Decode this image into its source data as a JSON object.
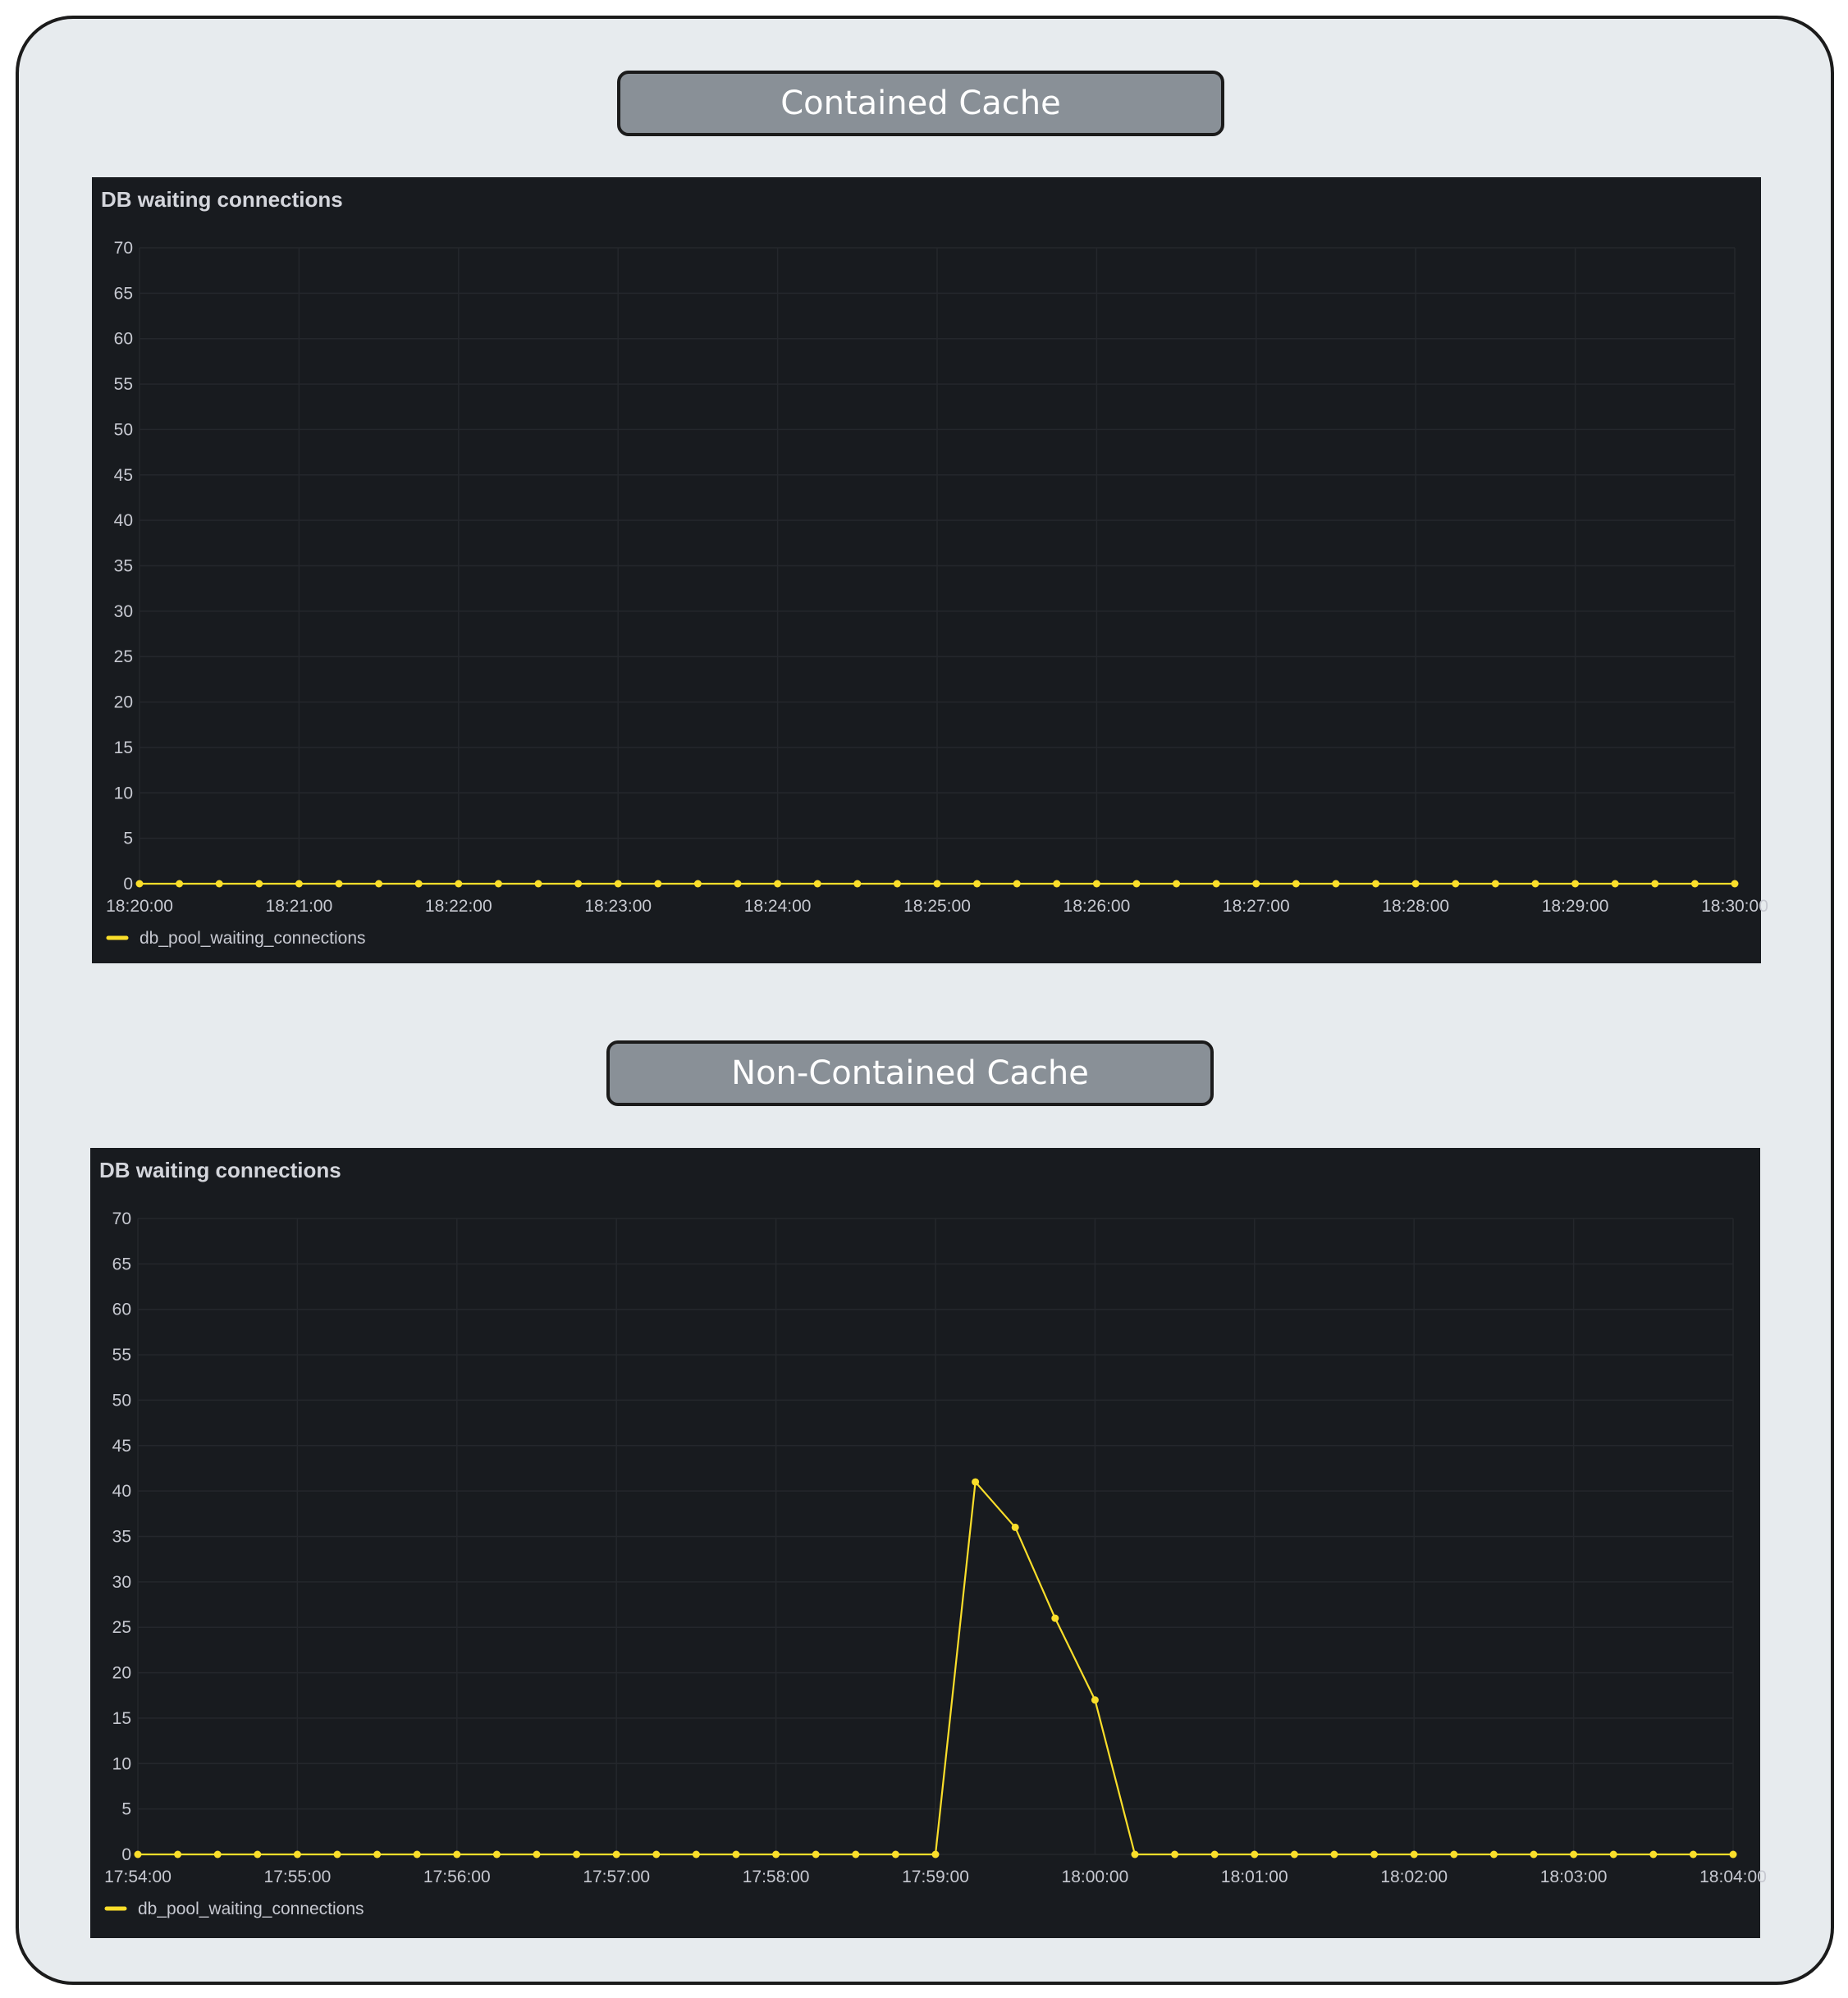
{
  "sections": [
    {
      "label": "Contained Cache"
    },
    {
      "label": "Non-Contained Cache"
    }
  ],
  "chart_data": [
    {
      "type": "line",
      "title": "DB waiting connections",
      "ylim": [
        0,
        70
      ],
      "yticks": [
        "0",
        "5",
        "10",
        "15",
        "20",
        "25",
        "30",
        "35",
        "40",
        "45",
        "50",
        "55",
        "60",
        "65",
        "70"
      ],
      "xticks": [
        "18:20:00",
        "18:21:00",
        "18:22:00",
        "18:23:00",
        "18:24:00",
        "18:25:00",
        "18:26:00",
        "18:27:00",
        "18:28:00",
        "18:29:00",
        "18:30:00"
      ],
      "x_start": "18:20:00",
      "x_end": "18:30:00",
      "x_step_seconds": 15,
      "grid": true,
      "legend_placement": "bottom-left",
      "series": [
        {
          "name": "db_pool_waiting_connections",
          "color": "#fade2a",
          "values": [
            0,
            0,
            0,
            0,
            0,
            0,
            0,
            0,
            0,
            0,
            0,
            0,
            0,
            0,
            0,
            0,
            0,
            0,
            0,
            0,
            0,
            0,
            0,
            0,
            0,
            0,
            0,
            0,
            0,
            0,
            0,
            0,
            0,
            0,
            0,
            0,
            0,
            0,
            0,
            0,
            0
          ]
        }
      ]
    },
    {
      "type": "line",
      "title": "DB waiting connections",
      "ylim": [
        0,
        70
      ],
      "yticks": [
        "0",
        "5",
        "10",
        "15",
        "20",
        "25",
        "30",
        "35",
        "40",
        "45",
        "50",
        "55",
        "60",
        "65",
        "70"
      ],
      "xticks": [
        "17:54:00",
        "17:55:00",
        "17:56:00",
        "17:57:00",
        "17:58:00",
        "17:59:00",
        "18:00:00",
        "18:01:00",
        "18:02:00",
        "18:03:00",
        "18:04:00"
      ],
      "x_start": "17:54:00",
      "x_end": "18:04:00",
      "x_step_seconds": 15,
      "grid": true,
      "legend_placement": "bottom-left",
      "series": [
        {
          "name": "db_pool_waiting_connections",
          "color": "#fade2a",
          "values": [
            0,
            0,
            0,
            0,
            0,
            0,
            0,
            0,
            0,
            0,
            0,
            0,
            0,
            0,
            0,
            0,
            0,
            0,
            0,
            0,
            0,
            41,
            36,
            26,
            17,
            0,
            0,
            0,
            0,
            0,
            0,
            0,
            0,
            0,
            0,
            0,
            0,
            0,
            0,
            0,
            0
          ]
        }
      ]
    }
  ]
}
